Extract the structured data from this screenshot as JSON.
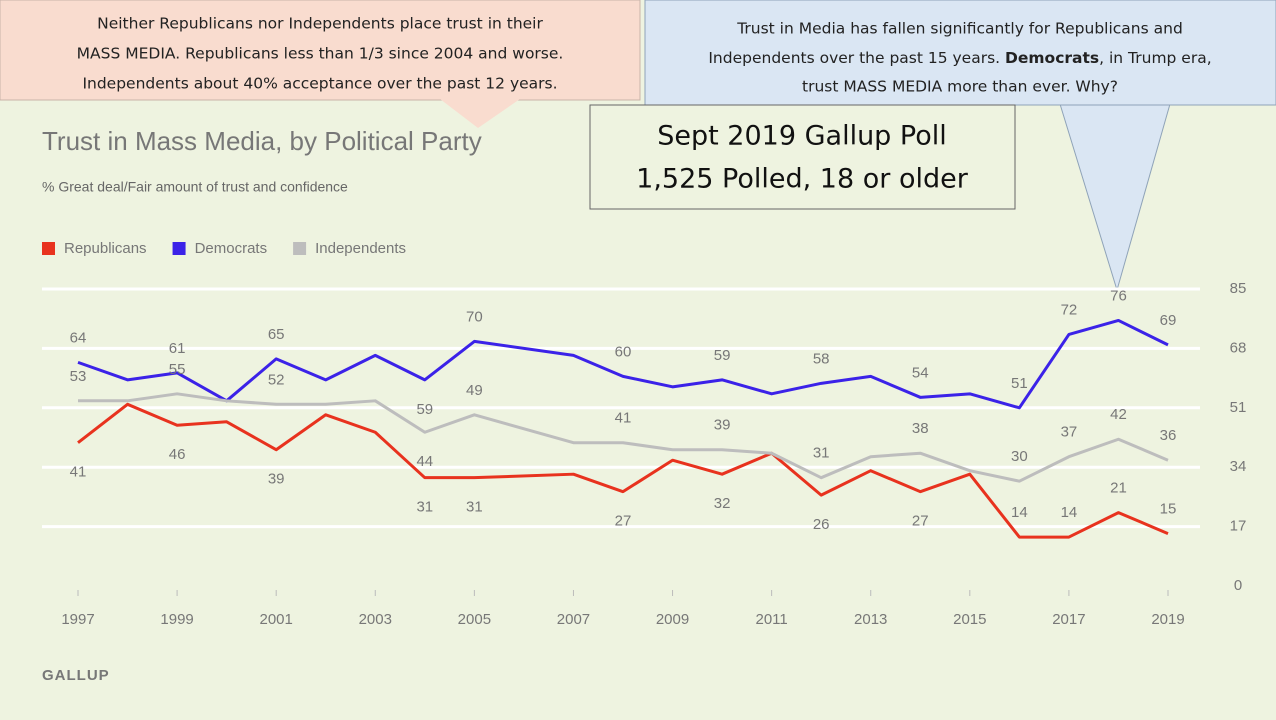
{
  "annotations": {
    "left": [
      "Neither Republicans nor Independents place trust in their",
      "MASS MEDIA. Republicans less than 1/3 since 2004 and worse.",
      "Independents about 40% acceptance over the past 12 years."
    ],
    "right_line1": "Trust in Media has fallen significantly for Republicans and",
    "right_line2a": "Independents over the past 15 years. ",
    "right_line2_bold": "Democrats",
    "right_line2b": ", in Trump era,",
    "right_line3": "trust MASS MEDIA more than ever. Why?",
    "poll": [
      "Sept 2019 Gallup Poll",
      "1,525 Polled, 18 or older"
    ]
  },
  "chart_data": {
    "type": "line",
    "title": "Trust in Mass Media, by Political Party",
    "subtitle": "% Great deal/Fair amount of trust and confidence",
    "source": "GALLUP",
    "x": [
      1997,
      1998,
      1999,
      2000,
      2001,
      2002,
      2003,
      2004,
      2005,
      2007,
      2008,
      2009,
      2010,
      2011,
      2012,
      2013,
      2014,
      2015,
      2016,
      2017,
      2018,
      2019
    ],
    "xlim": [
      1997,
      2019
    ],
    "xticks": [
      1997,
      1999,
      2001,
      2003,
      2005,
      2007,
      2009,
      2011,
      2013,
      2015,
      2017,
      2019
    ],
    "ylim": [
      0,
      85
    ],
    "yticks": [
      0,
      17,
      34,
      51,
      68,
      85
    ],
    "grid": true,
    "series": [
      {
        "name": "Republicans",
        "color": "#e8321e",
        "values": [
          41,
          52,
          46,
          47,
          39,
          49,
          44,
          31,
          31,
          32,
          27,
          36,
          32,
          38,
          26,
          33,
          27,
          32,
          14,
          14,
          21,
          15
        ],
        "value_labels": [
          "41",
          null,
          "46",
          null,
          "39",
          null,
          null,
          "31",
          "31",
          null,
          "27",
          null,
          "32",
          null,
          "26",
          null,
          "27",
          null,
          "14",
          "14",
          "21",
          "15"
        ]
      },
      {
        "name": "Democrats",
        "color": "#3b22e8",
        "values": [
          64,
          59,
          61,
          53,
          65,
          59,
          66,
          59,
          70,
          66,
          60,
          57,
          59,
          55,
          58,
          60,
          54,
          55,
          51,
          72,
          76,
          69
        ],
        "value_labels": [
          "64",
          null,
          "61",
          null,
          "65",
          null,
          null,
          "59",
          "70",
          null,
          "60",
          null,
          "59",
          null,
          "58",
          null,
          "54",
          null,
          "51",
          "72",
          "76",
          "69"
        ]
      },
      {
        "name": "Independents",
        "color": "#bdbdbd",
        "values": [
          53,
          53,
          55,
          53,
          52,
          52,
          53,
          44,
          49,
          41,
          41,
          39,
          39,
          38,
          31,
          37,
          38,
          33,
          30,
          37,
          42,
          36
        ],
        "value_labels": [
          "53",
          null,
          "55",
          null,
          "52",
          null,
          null,
          "44",
          "49",
          null,
          "41",
          null,
          "39",
          null,
          "31",
          null,
          "38",
          null,
          "30",
          "37",
          "42",
          "36"
        ]
      }
    ]
  }
}
